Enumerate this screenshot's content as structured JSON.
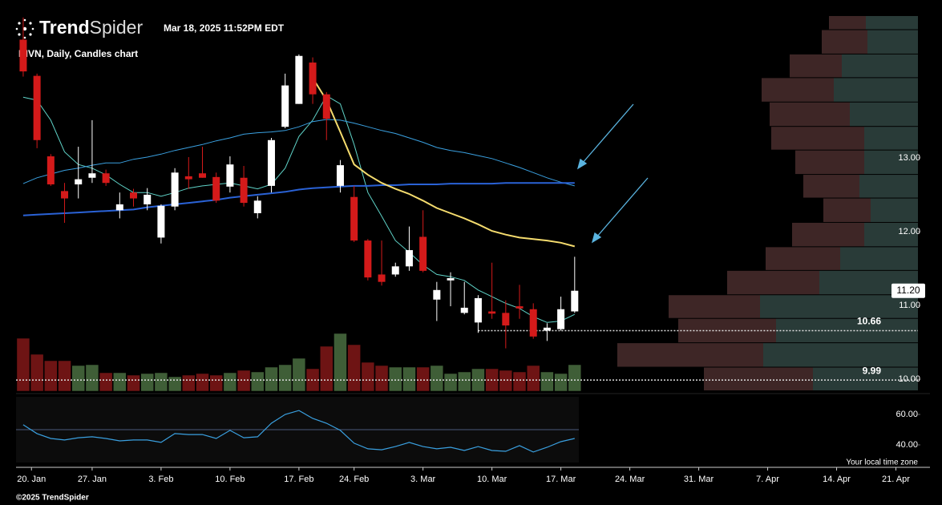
{
  "header": {
    "brand_bold": "Trend",
    "brand_light": "Spider",
    "timestamp": "Mar 18, 2025 11:52PM EDT",
    "chart_label": "RIVN, Daily, Candles chart"
  },
  "footer": {
    "copyright": "©2025 TrendSpider",
    "timezone_note": "Your local time zone"
  },
  "chart_data": {
    "type": "candlestick",
    "xlim": [
      -0.52,
      64.9
    ],
    "xticks": [
      {
        "value": 0.6,
        "label": "20. Jan"
      },
      {
        "value": 5,
        "label": "27. Jan"
      },
      {
        "value": 10,
        "label": "3. Feb"
      },
      {
        "value": 15,
        "label": "10. Feb"
      },
      {
        "value": 20,
        "label": "17. Feb"
      },
      {
        "value": 24,
        "label": "24. Feb"
      },
      {
        "value": 29,
        "label": "3. Mar"
      },
      {
        "value": 34,
        "label": "10. Mar"
      },
      {
        "value": 39,
        "label": "17. Mar"
      },
      {
        "value": 44,
        "label": "24. Mar"
      },
      {
        "value": 49,
        "label": "31. Mar"
      },
      {
        "value": 54,
        "label": "7. Apr"
      },
      {
        "value": 59,
        "label": "14. Apr"
      },
      {
        "value": 63.3,
        "label": "21. Apr"
      }
    ],
    "ylim": [
      9.84,
      14.92
    ],
    "yticks": [
      {
        "value": 13,
        "label": "13.00"
      },
      {
        "value": 12,
        "label": "12.00"
      },
      {
        "value": 11,
        "label": "11.00"
      },
      {
        "value": 10,
        "label": "10.00"
      }
    ],
    "up_color": "#ffffff",
    "down_color": "#d41a1a",
    "open": [
      14.6,
      14.11,
      13.02,
      12.55,
      12.64,
      12.73,
      12.79,
      12.29,
      12.53,
      12.37,
      11.92,
      12.34,
      12.75,
      12.79,
      12.74,
      12.61,
      12.73,
      12.25,
      12.62,
      13.42,
      13.73,
      14.29,
      13.86,
      12.62,
      12.47,
      11.88,
      11.42,
      11.42,
      11.53,
      11.93,
      11.08,
      11.34,
      10.9,
      10.77,
      10.92,
      10.9,
      10.99,
      10.95,
      10.66,
      10.68,
      10.92
    ],
    "high": [
      14.9,
      14.14,
      13.05,
      12.66,
      13.15,
      13.51,
      12.84,
      12.53,
      12.58,
      12.59,
      12.37,
      12.86,
      13.01,
      13.15,
      12.8,
      13.02,
      12.89,
      12.48,
      13.27,
      14.14,
      14.4,
      14.36,
      13.89,
      12.97,
      12.62,
      11.9,
      11.88,
      11.58,
      12.07,
      12.29,
      11.32,
      11.45,
      11.32,
      11.14,
      11.58,
      11.07,
      11.28,
      11.03,
      10.76,
      11.12,
      11.66
    ],
    "low": [
      14.1,
      13.13,
      12.62,
      12.12,
      12.45,
      12.66,
      12.62,
      12.18,
      12.34,
      12.29,
      11.84,
      12.29,
      12.58,
      12.73,
      12.39,
      12.53,
      12.34,
      12.18,
      12.53,
      13.4,
      13.73,
      13.73,
      13.24,
      12.53,
      11.86,
      11.34,
      11.27,
      11.39,
      11.47,
      11.45,
      10.79,
      10.99,
      10.88,
      10.63,
      10.82,
      10.42,
      10.82,
      10.55,
      10.52,
      10.66,
      10.9
    ],
    "close": [
      14.17,
      13.24,
      12.64,
      12.45,
      12.71,
      12.79,
      12.66,
      12.37,
      12.45,
      12.5,
      12.35,
      12.8,
      12.71,
      12.73,
      12.42,
      12.91,
      12.39,
      12.42,
      13.24,
      13.98,
      14.38,
      13.86,
      13.53,
      12.9,
      11.88,
      11.38,
      11.32,
      11.53,
      11.75,
      11.47,
      11.21,
      11.37,
      10.97,
      11.1,
      10.89,
      10.73,
      10.96,
      10.58,
      10.7,
      10.95,
      11.2
    ],
    "series": [
      {
        "color": "#5fd3c8",
        "width": 1,
        "values": [
          13.82,
          13.78,
          13.51,
          13.08,
          12.91,
          12.86,
          12.77,
          12.64,
          12.53,
          12.53,
          12.48,
          12.53,
          12.59,
          12.62,
          12.64,
          12.66,
          12.62,
          12.58,
          12.64,
          12.86,
          13.29,
          13.51,
          13.84,
          13.73,
          13.18,
          12.53,
          12.21,
          11.88,
          11.72,
          11.55,
          11.42,
          11.39,
          11.34,
          11.21,
          11.12,
          11.03,
          10.96,
          10.85,
          10.77,
          10.79,
          10.88
        ]
      },
      {
        "color": "#3aa0e0",
        "width": 1,
        "values": [
          12.65,
          12.73,
          12.78,
          12.83,
          12.86,
          12.9,
          12.93,
          12.93,
          12.98,
          13.01,
          13.05,
          13.1,
          13.14,
          13.18,
          13.23,
          13.27,
          13.32,
          13.34,
          13.35,
          13.37,
          13.42,
          13.49,
          13.52,
          13.51,
          13.47,
          13.42,
          13.37,
          13.33,
          13.27,
          13.21,
          13.14,
          13.1,
          13.07,
          13.03,
          12.99,
          12.93,
          12.87,
          12.8,
          12.73,
          12.67,
          12.62
        ]
      },
      {
        "color": "#2a62d6",
        "width": 2,
        "values": [
          12.22,
          12.23,
          12.24,
          12.25,
          12.26,
          12.27,
          12.28,
          12.29,
          12.3,
          12.33,
          12.35,
          12.37,
          12.39,
          12.41,
          12.43,
          12.46,
          12.48,
          12.5,
          12.52,
          12.54,
          12.57,
          12.59,
          12.6,
          12.61,
          12.62,
          12.62,
          12.63,
          12.63,
          12.64,
          12.64,
          12.64,
          12.65,
          12.65,
          12.65,
          12.65,
          12.66,
          12.66,
          12.66,
          12.66,
          12.66,
          12.66
        ]
      },
      {
        "color": "#f5dc6e",
        "width": 2,
        "values": [
          null,
          null,
          null,
          null,
          null,
          null,
          null,
          null,
          null,
          null,
          null,
          null,
          null,
          null,
          null,
          null,
          null,
          null,
          null,
          null,
          null,
          14.08,
          13.78,
          13.35,
          12.91,
          12.77,
          12.66,
          12.58,
          12.51,
          12.42,
          12.32,
          12.25,
          12.18,
          12.1,
          12.01,
          11.96,
          11.92,
          11.9,
          11.88,
          11.85,
          11.8
        ]
      }
    ],
    "volume": {
      "vlim": [
        0,
        100
      ],
      "up_color": "#3f5e37",
      "down_color": "#6e1414",
      "values": [
        66,
        46,
        38,
        38,
        32,
        33,
        23,
        23,
        20,
        22,
        23,
        18,
        20,
        22,
        20,
        23,
        26,
        24,
        30,
        33,
        41,
        28,
        56,
        72,
        58,
        36,
        32,
        30,
        30,
        30,
        32,
        22,
        24,
        28,
        28,
        26,
        24,
        32,
        24,
        22,
        33
      ]
    },
    "price_lines": [
      {
        "value": 10.66,
        "label": "10.66"
      },
      {
        "value": 9.99,
        "label": "9.99"
      }
    ],
    "last_price": {
      "value": 11.2,
      "label": "11.20"
    },
    "volume_profile": {
      "xlim": [
        0,
        400
      ],
      "down_color": "#3e2626",
      "up_color": "#293b38",
      "bins": [
        9.84,
        10.16,
        10.49,
        10.82,
        11.14,
        11.47,
        11.79,
        12.12,
        12.45,
        12.77,
        13.1,
        13.42,
        13.75,
        14.08,
        14.4,
        14.73,
        14.92
      ],
      "down": [
        136,
        182,
        122,
        114,
        115,
        93,
        90,
        59,
        70,
        86,
        116,
        100,
        90,
        65,
        57,
        46
      ],
      "up": [
        131,
        193,
        177,
        197,
        123,
        97,
        67,
        59,
        73,
        67,
        67,
        85,
        105,
        95,
        63,
        65
      ]
    },
    "rsi": {
      "ylim": [
        28.4,
        71.6
      ],
      "yticks": [
        {
          "value": 60,
          "label": "60.00"
        },
        {
          "value": 40,
          "label": "40.00"
        }
      ],
      "midline": 50,
      "color": "#3aa0e0",
      "values": [
        53.2,
        47.4,
        44.2,
        43.2,
        44.7,
        45.3,
        44.2,
        42.6,
        43.2,
        43.2,
        41.6,
        47.4,
        46.8,
        46.8,
        44.2,
        49.5,
        44.7,
        45.3,
        54.2,
        60,
        62.6,
        57.4,
        54.2,
        49.5,
        41.1,
        37.4,
        36.8,
        38.9,
        41.6,
        38.9,
        37.4,
        38.4,
        36.3,
        38.9,
        36.3,
        35.8,
        39.5,
        35.3,
        38.4,
        42.1,
        44.2
      ]
    }
  }
}
